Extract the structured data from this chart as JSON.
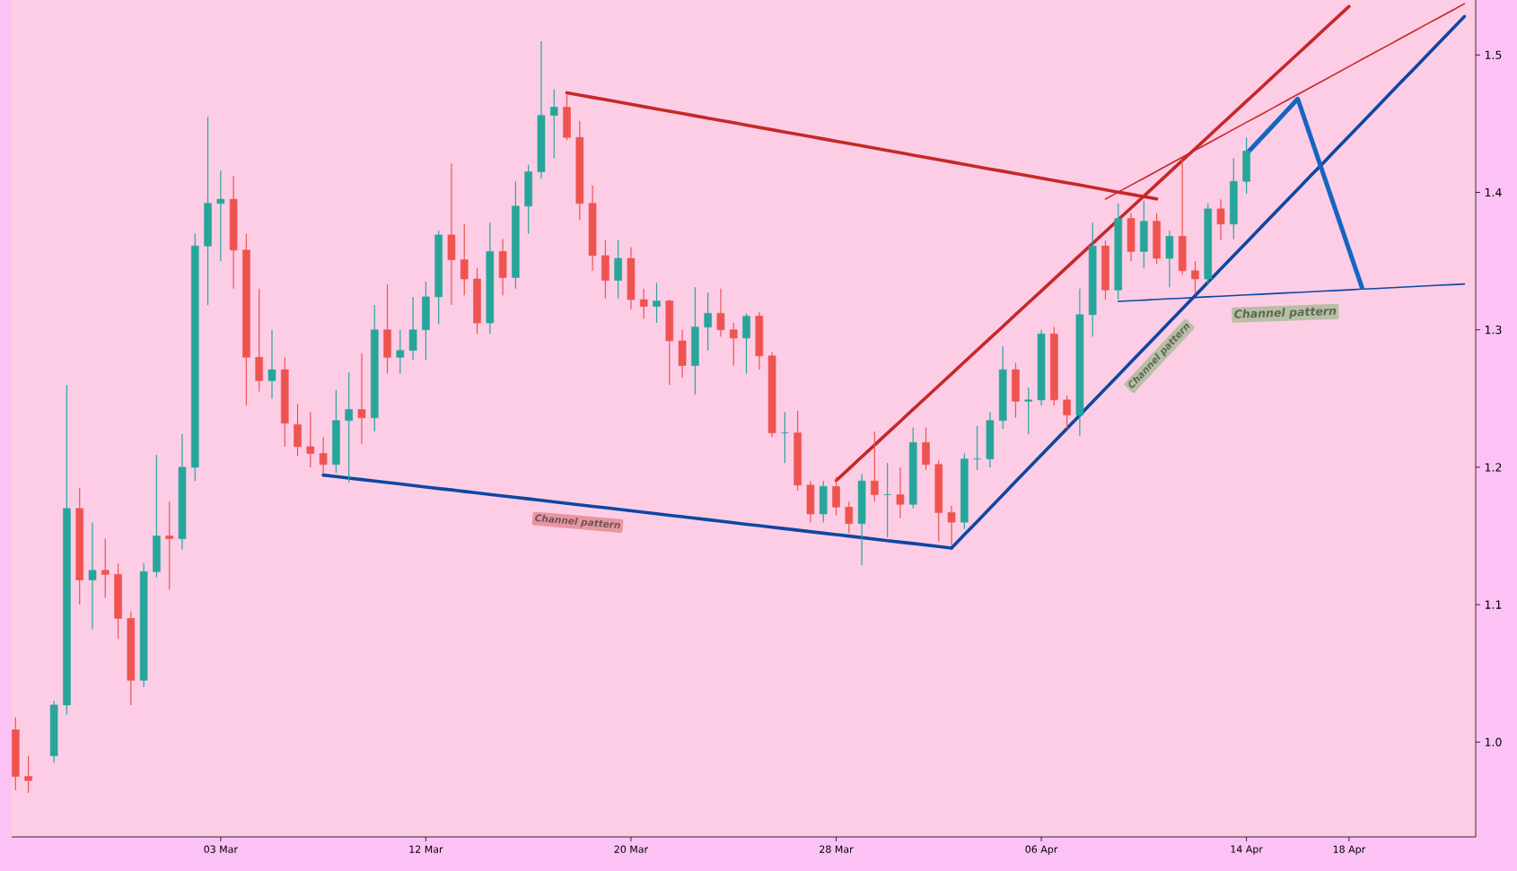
{
  "chart_data": {
    "type": "candlestick",
    "categories": [
      null,
      null,
      null,
      null,
      null,
      null,
      null,
      null,
      null,
      null,
      null,
      null,
      null,
      null,
      null,
      null,
      "03 Mar",
      null,
      null,
      null,
      null,
      null,
      null,
      null,
      null,
      null,
      null,
      null,
      null,
      null,
      null,
      null,
      "12 Mar",
      null,
      null,
      null,
      null,
      null,
      null,
      null,
      null,
      null,
      null,
      null,
      null,
      null,
      null,
      null,
      "20 Mar",
      null,
      null,
      null,
      null,
      null,
      null,
      null,
      null,
      null,
      null,
      null,
      null,
      null,
      null,
      null,
      "28 Mar",
      null,
      null,
      null,
      null,
      null,
      null,
      null,
      null,
      null,
      null,
      null,
      null,
      null,
      null,
      null,
      "06 Apr",
      null,
      null,
      null,
      null,
      null,
      null,
      null,
      null,
      null,
      null,
      null,
      null,
      null,
      null,
      null,
      "14 Apr",
      null,
      null,
      null,
      null,
      null,
      null,
      null,
      "18 Apr",
      null,
      null,
      null,
      null,
      null,
      null,
      null,
      null,
      null
    ],
    "ohlc": [
      [
        1.009,
        1.018,
        0.965,
        0.975
      ],
      [
        0.975,
        0.99,
        0.963,
        0.972
      ],
      null,
      [
        0.99,
        1.03,
        0.985,
        1.027
      ],
      [
        1.027,
        1.26,
        1.02,
        1.17
      ],
      [
        1.17,
        1.185,
        1.1,
        1.118
      ],
      [
        1.118,
        1.16,
        1.082,
        1.125
      ],
      [
        1.125,
        1.148,
        1.105,
        1.122
      ],
      [
        1.122,
        1.13,
        1.075,
        1.09
      ],
      [
        1.09,
        1.095,
        1.027,
        1.045
      ],
      [
        1.045,
        1.13,
        1.04,
        1.124
      ],
      [
        1.124,
        1.209,
        1.12,
        1.15
      ],
      [
        1.15,
        1.175,
        1.111,
        1.148
      ],
      [
        1.148,
        1.224,
        1.14,
        1.2
      ],
      [
        1.2,
        1.37,
        1.19,
        1.361
      ],
      [
        1.361,
        1.455,
        1.318,
        1.392
      ],
      [
        1.392,
        1.416,
        1.35,
        1.395
      ],
      [
        1.395,
        1.412,
        1.33,
        1.358
      ],
      [
        1.358,
        1.37,
        1.245,
        1.28
      ],
      [
        1.28,
        1.33,
        1.255,
        1.263
      ],
      [
        1.263,
        1.3,
        1.25,
        1.271
      ],
      [
        1.271,
        1.28,
        1.215,
        1.232
      ],
      [
        1.231,
        1.246,
        1.208,
        1.215
      ],
      [
        1.215,
        1.24,
        1.2,
        1.21
      ],
      [
        1.21,
        1.222,
        1.195,
        1.202
      ],
      [
        1.202,
        1.256,
        1.196,
        1.234
      ],
      [
        1.234,
        1.269,
        1.189,
        1.242
      ],
      [
        1.242,
        1.283,
        1.217,
        1.236
      ],
      [
        1.236,
        1.318,
        1.226,
        1.3
      ],
      [
        1.3,
        1.333,
        1.268,
        1.28
      ],
      [
        1.28,
        1.3,
        1.268,
        1.285
      ],
      [
        1.285,
        1.324,
        1.278,
        1.3
      ],
      [
        1.3,
        1.335,
        1.278,
        1.324
      ],
      [
        1.324,
        1.372,
        1.304,
        1.369
      ],
      [
        1.369,
        1.421,
        1.318,
        1.351
      ],
      [
        1.351,
        1.377,
        1.325,
        1.337
      ],
      [
        1.337,
        1.345,
        1.297,
        1.305
      ],
      [
        1.305,
        1.378,
        1.297,
        1.357
      ],
      [
        1.357,
        1.366,
        1.325,
        1.338
      ],
      [
        1.338,
        1.408,
        1.33,
        1.39
      ],
      [
        1.39,
        1.42,
        1.37,
        1.415
      ],
      [
        1.415,
        1.51,
        1.41,
        1.456
      ],
      [
        1.456,
        1.475,
        1.425,
        1.462
      ],
      [
        1.462,
        1.471,
        1.438,
        1.44
      ],
      [
        1.44,
        1.452,
        1.38,
        1.392
      ],
      [
        1.392,
        1.405,
        1.343,
        1.354
      ],
      [
        1.354,
        1.365,
        1.323,
        1.336
      ],
      [
        1.336,
        1.365,
        1.323,
        1.352
      ],
      [
        1.352,
        1.36,
        1.315,
        1.322
      ],
      [
        1.322,
        1.33,
        1.308,
        1.317
      ],
      [
        1.317,
        1.334,
        1.305,
        1.321
      ],
      [
        1.321,
        1.322,
        1.26,
        1.292
      ],
      [
        1.292,
        1.3,
        1.265,
        1.274
      ],
      [
        1.274,
        1.331,
        1.253,
        1.302
      ],
      [
        1.302,
        1.327,
        1.285,
        1.312
      ],
      [
        1.312,
        1.33,
        1.295,
        1.3
      ],
      [
        1.3,
        1.305,
        1.274,
        1.294
      ],
      [
        1.294,
        1.312,
        1.268,
        1.31
      ],
      [
        1.31,
        1.313,
        1.271,
        1.281
      ],
      [
        1.281,
        1.284,
        1.222,
        1.225
      ],
      [
        1.225,
        1.24,
        1.203,
        1.225
      ],
      [
        1.225,
        1.241,
        1.183,
        1.187
      ],
      [
        1.187,
        1.19,
        1.16,
        1.166
      ],
      [
        1.166,
        1.19,
        1.16,
        1.186
      ],
      [
        1.186,
        1.193,
        1.165,
        1.171
      ],
      [
        1.171,
        1.175,
        1.152,
        1.159
      ],
      [
        1.159,
        1.195,
        1.129,
        1.19
      ],
      [
        1.19,
        1.226,
        1.175,
        1.18
      ],
      [
        1.18,
        1.203,
        1.149,
        1.18
      ],
      [
        1.18,
        1.2,
        1.163,
        1.173
      ],
      [
        1.173,
        1.229,
        1.17,
        1.218
      ],
      [
        1.218,
        1.229,
        1.198,
        1.202
      ],
      [
        1.202,
        1.205,
        1.146,
        1.167
      ],
      [
        1.167,
        1.172,
        1.143,
        1.16
      ],
      [
        1.16,
        1.21,
        1.155,
        1.206
      ],
      [
        1.206,
        1.23,
        1.198,
        1.206
      ],
      [
        1.206,
        1.24,
        1.2,
        1.234
      ],
      [
        1.234,
        1.288,
        1.228,
        1.271
      ],
      [
        1.271,
        1.276,
        1.236,
        1.248
      ],
      [
        1.248,
        1.258,
        1.224,
        1.249
      ],
      [
        1.249,
        1.3,
        1.245,
        1.297
      ],
      [
        1.297,
        1.302,
        1.245,
        1.249
      ],
      [
        1.249,
        1.252,
        1.228,
        1.238
      ],
      [
        1.238,
        1.33,
        1.223,
        1.311
      ],
      [
        1.311,
        1.378,
        1.295,
        1.361
      ],
      [
        1.361,
        1.365,
        1.322,
        1.329
      ],
      [
        1.329,
        1.392,
        1.322,
        1.381
      ],
      [
        1.381,
        1.385,
        1.35,
        1.357
      ],
      [
        1.357,
        1.394,
        1.345,
        1.379
      ],
      [
        1.379,
        1.385,
        1.348,
        1.352
      ],
      [
        1.352,
        1.372,
        1.331,
        1.368
      ],
      [
        1.368,
        1.424,
        1.34,
        1.343
      ],
      [
        1.343,
        1.35,
        1.326,
        1.337
      ],
      [
        1.337,
        1.392,
        1.333,
        1.388
      ],
      [
        1.388,
        1.395,
        1.365,
        1.377
      ],
      [
        1.377,
        1.425,
        1.366,
        1.408
      ],
      [
        1.408,
        1.44,
        1.399,
        1.43
      ],
      null,
      null,
      null,
      null,
      null,
      null,
      null,
      null,
      null,
      null,
      null,
      null,
      null,
      null,
      null,
      null,
      null
    ],
    "colors": [
      "#ef5350",
      "#ef5350",
      null,
      "#26a69a",
      "#26a69a",
      "#ef5350",
      "#26a69a",
      "#ef5350",
      "#ef5350",
      "#ef5350",
      "#26a69a",
      "#26a69a",
      "#ef5350",
      "#26a69a",
      "#26a69a",
      "#26a69a",
      "#26a69a",
      "#ef5350",
      "#ef5350",
      "#ef5350",
      "#26a69a",
      "#ef5350",
      "#ef5350",
      "#ef5350",
      "#ef5350",
      "#26a69a",
      "#26a69a",
      "#ef5350",
      "#26a69a",
      "#ef5350",
      "#26a69a",
      "#26a69a",
      "#26a69a",
      "#26a69a",
      "#ef5350",
      "#ef5350",
      "#ef5350",
      "#26a69a",
      "#ef5350",
      "#26a69a",
      "#26a69a",
      "#26a69a",
      "#26a69a",
      "#ef5350",
      "#ef5350",
      "#ef5350",
      "#ef5350",
      "#26a69a",
      "#ef5350",
      "#ef5350",
      "#26a69a",
      "#ef5350",
      "#ef5350",
      "#26a69a",
      "#26a69a",
      "#ef5350",
      "#ef5350",
      "#26a69a",
      "#ef5350",
      "#ef5350",
      "#26a69a",
      "#ef5350",
      "#ef5350",
      "#26a69a",
      "#ef5350",
      "#ef5350",
      "#26a69a",
      "#ef5350",
      "#26a69a",
      "#ef5350",
      "#26a69a",
      "#ef5350",
      "#ef5350",
      "#ef5350",
      "#26a69a",
      "#26a69a",
      "#26a69a",
      "#26a69a",
      "#ef5350",
      "#26a69a",
      "#26a69a",
      "#ef5350",
      "#ef5350",
      "#26a69a",
      "#26a69a",
      "#ef5350",
      "#26a69a",
      "#ef5350",
      "#26a69a",
      "#ef5350",
      "#26a69a",
      "#ef5350",
      "#ef5350",
      "#26a69a",
      "#ef5350",
      "#26a69a",
      "#26a69a",
      null,
      null,
      null,
      null,
      null,
      null,
      null,
      null,
      null,
      null,
      null,
      null,
      null,
      null,
      null,
      null,
      null
    ],
    "series": [
      {
        "type": "line",
        "color": "#c62828",
        "values": [
          null,
          null,
          null,
          null,
          null,
          null,
          null,
          null,
          null,
          null,
          null,
          null,
          null,
          null,
          null,
          null,
          null,
          null,
          null,
          null,
          null,
          null,
          null,
          null,
          null,
          null,
          null,
          null,
          null,
          null,
          null,
          null,
          null,
          null,
          null,
          null,
          null,
          null,
          null,
          null,
          null,
          null,
          null,
          1.4725,
          1.4708,
          1.4691,
          1.4675,
          1.4658,
          1.4641,
          1.4624,
          1.4607,
          1.4591,
          1.4574,
          1.4557,
          1.454,
          1.4523,
          1.4507,
          1.449,
          1.4473,
          1.4456,
          1.4439,
          1.4423,
          1.4406,
          1.4389,
          1.4372,
          1.4355,
          1.4339,
          1.4322,
          1.4305,
          1.4288,
          1.4271,
          1.4254,
          1.4238,
          1.4221,
          1.4204,
          1.4187,
          1.417,
          1.4154,
          1.4137,
          1.412,
          1.4103,
          1.4086,
          1.407,
          1.4053,
          1.4036,
          1.4019,
          1.4002,
          1.3986,
          1.3969,
          1.3952,
          null,
          null,
          null,
          null,
          null,
          null,
          null,
          null,
          null,
          null,
          null,
          null,
          null,
          null,
          null,
          null,
          null,
          null,
          null,
          null,
          null,
          null,
          null,
          null
        ]
      },
      {
        "type": "line",
        "color": "#0d47a1",
        "values": [
          null,
          null,
          null,
          null,
          null,
          null,
          null,
          null,
          null,
          null,
          null,
          null,
          null,
          null,
          null,
          null,
          null,
          null,
          null,
          null,
          null,
          null,
          null,
          null,
          1.1943,
          1.1932,
          1.1921,
          1.191,
          1.19,
          1.1889,
          1.1878,
          1.1867,
          1.1856,
          1.1845,
          1.1835,
          1.1824,
          1.1813,
          1.1802,
          1.1791,
          1.178,
          1.177,
          1.1759,
          1.1748,
          1.1737,
          1.1726,
          1.1715,
          1.1705,
          1.1694,
          1.1683,
          1.1672,
          1.1661,
          1.165,
          1.164,
          1.1629,
          1.1618,
          1.1607,
          1.1596,
          1.1585,
          1.1575,
          1.1564,
          1.1553,
          1.1542,
          1.1531,
          1.152,
          1.151,
          1.1499,
          1.1488,
          1.1477,
          1.1466,
          1.1455,
          1.1445,
          1.1434,
          1.1423,
          1.1412,
          null,
          null,
          null,
          null,
          null,
          null,
          null,
          null,
          null,
          null,
          null,
          null,
          null,
          null,
          null,
          null,
          null,
          null,
          null,
          null,
          null,
          null,
          null,
          null,
          null,
          null,
          null,
          null,
          null,
          null,
          null,
          null,
          null,
          null,
          null,
          null,
          null,
          null,
          null,
          null
        ]
      },
      {
        "type": "line",
        "color": "#c62828",
        "values": [
          null,
          null,
          null,
          null,
          null,
          null,
          null,
          null,
          null,
          null,
          null,
          null,
          null,
          null,
          null,
          null,
          null,
          null,
          null,
          null,
          null,
          null,
          null,
          null,
          null,
          null,
          null,
          null,
          null,
          null,
          null,
          null,
          null,
          null,
          null,
          null,
          null,
          null,
          null,
          null,
          null,
          null,
          null,
          null,
          null,
          null,
          null,
          null,
          null,
          null,
          null,
          null,
          null,
          null,
          null,
          null,
          null,
          null,
          null,
          null,
          null,
          null,
          null,
          null,
          1.1903,
          1.1989,
          1.2076,
          1.2162,
          1.2248,
          1.2334,
          1.2421,
          1.2507,
          1.2593,
          1.2679,
          1.2766,
          1.2852,
          1.2938,
          1.3024,
          1.3111,
          1.3197,
          1.3283,
          1.3369,
          1.3456,
          1.3542,
          1.3628,
          1.3714,
          1.3801,
          1.3887,
          1.3973,
          1.4059,
          1.4146,
          1.4232,
          1.4318,
          1.4404,
          1.4491,
          1.4577,
          1.4663,
          1.4749,
          1.4836,
          1.4922,
          1.5008,
          1.5094,
          1.5181,
          1.5267,
          1.5353,
          null,
          null,
          null,
          null,
          null,
          null,
          null,
          null,
          null
        ]
      },
      {
        "type": "line",
        "color": "#0d47a1",
        "values": [
          null,
          null,
          null,
          null,
          null,
          null,
          null,
          null,
          null,
          null,
          null,
          null,
          null,
          null,
          null,
          null,
          null,
          null,
          null,
          null,
          null,
          null,
          null,
          null,
          null,
          null,
          null,
          null,
          null,
          null,
          null,
          null,
          null,
          null,
          null,
          null,
          null,
          null,
          null,
          null,
          null,
          null,
          null,
          null,
          null,
          null,
          null,
          null,
          null,
          null,
          null,
          null,
          null,
          null,
          null,
          null,
          null,
          null,
          null,
          null,
          null,
          null,
          null,
          null,
          null,
          null,
          null,
          null,
          null,
          null,
          null,
          null,
          null,
          1.1412,
          1.1509,
          1.1605,
          1.1702,
          1.1799,
          1.1896,
          1.1992,
          1.2089,
          1.2186,
          1.2282,
          1.2379,
          1.2476,
          1.2572,
          1.2669,
          1.2766,
          1.2863,
          1.2959,
          1.3056,
          1.3153,
          1.3249,
          1.3346,
          1.3443,
          1.3539,
          1.3636,
          1.3733,
          1.383,
          1.3926,
          1.4023,
          1.412,
          1.4216,
          1.4313,
          1.441,
          1.4506,
          1.4603,
          1.47,
          1.4797,
          1.4893,
          1.499,
          1.5087,
          1.5183,
          1.528
        ]
      },
      {
        "type": "line",
        "color": "#c62828",
        "values": [
          null,
          null,
          null,
          null,
          null,
          null,
          null,
          null,
          null,
          null,
          null,
          null,
          null,
          null,
          null,
          null,
          null,
          null,
          null,
          null,
          null,
          null,
          null,
          null,
          null,
          null,
          null,
          null,
          null,
          null,
          null,
          null,
          null,
          null,
          null,
          null,
          null,
          null,
          null,
          null,
          null,
          null,
          null,
          null,
          null,
          null,
          null,
          null,
          null,
          null,
          null,
          null,
          null,
          null,
          null,
          null,
          null,
          null,
          null,
          null,
          null,
          null,
          null,
          null,
          null,
          null,
          null,
          null,
          null,
          null,
          null,
          null,
          null,
          null,
          null,
          null,
          null,
          null,
          null,
          null,
          null,
          null,
          null,
          null,
          null,
          1.3951,
          1.4002,
          1.4053,
          1.4103,
          1.4154,
          1.4205,
          1.4256,
          1.4307,
          1.4357,
          1.4408,
          1.4459,
          1.451,
          1.456,
          1.4611,
          1.4662,
          1.4713,
          1.4764,
          1.4814,
          1.4865,
          1.4916,
          1.4967,
          1.5018,
          1.5068,
          1.5119,
          1.517,
          1.5221,
          1.5271,
          1.5322,
          1.5373
        ]
      },
      {
        "type": "line",
        "color": "#0d47a1",
        "values": [
          null,
          null,
          null,
          null,
          null,
          null,
          null,
          null,
          null,
          null,
          null,
          null,
          null,
          null,
          null,
          null,
          null,
          null,
          null,
          null,
          null,
          null,
          null,
          null,
          null,
          null,
          null,
          null,
          null,
          null,
          null,
          null,
          null,
          null,
          null,
          null,
          null,
          null,
          null,
          null,
          null,
          null,
          null,
          null,
          null,
          null,
          null,
          null,
          null,
          null,
          null,
          null,
          null,
          null,
          null,
          null,
          null,
          null,
          null,
          null,
          null,
          null,
          null,
          null,
          null,
          null,
          null,
          null,
          null,
          null,
          null,
          null,
          null,
          null,
          null,
          null,
          null,
          null,
          null,
          null,
          null,
          null,
          null,
          null,
          null,
          null,
          1.3207,
          1.3212,
          1.3216,
          1.3221,
          1.3226,
          1.323,
          1.3235,
          1.324,
          1.3244,
          1.3249,
          1.3254,
          1.3258,
          1.3263,
          1.3268,
          1.3272,
          1.3277,
          1.3282,
          1.3286,
          1.3291,
          1.3296,
          1.33,
          1.3305,
          1.331,
          1.3314,
          1.3319,
          1.3324,
          1.3328,
          1.3333
        ]
      },
      {
        "type": "line",
        "color": "#1565c0",
        "values": [
          null,
          null,
          null,
          null,
          null,
          null,
          null,
          null,
          null,
          null,
          null,
          null,
          null,
          null,
          null,
          null,
          null,
          null,
          null,
          null,
          null,
          null,
          null,
          null,
          null,
          null,
          null,
          null,
          null,
          null,
          null,
          null,
          null,
          null,
          null,
          null,
          null,
          null,
          null,
          null,
          null,
          null,
          null,
          null,
          null,
          null,
          null,
          null,
          null,
          null,
          null,
          null,
          null,
          null,
          null,
          null,
          null,
          null,
          null,
          null,
          null,
          null,
          null,
          null,
          null,
          null,
          null,
          null,
          null,
          null,
          null,
          null,
          null,
          null,
          null,
          null,
          null,
          null,
          null,
          null,
          null,
          null,
          null,
          null,
          null,
          null,
          null,
          null,
          null,
          null,
          null,
          null,
          null,
          null,
          null,
          null,
          1.428,
          1.438,
          1.448,
          1.458,
          1.468,
          1.4406,
          1.4132,
          1.3858,
          1.3584,
          1.331,
          null,
          null,
          null,
          null,
          null,
          null,
          null,
          null
        ]
      }
    ],
    "annotations": [
      "Channel pattern",
      "Channel pattern",
      "Channel pattern"
    ],
    "ylim": [
      0.931,
      1.54
    ],
    "yticks": [
      {
        "value": 1.0,
        "label": "1.0"
      },
      1.1,
      1.2,
      1.3,
      1.4,
      1.5
    ]
  }
}
